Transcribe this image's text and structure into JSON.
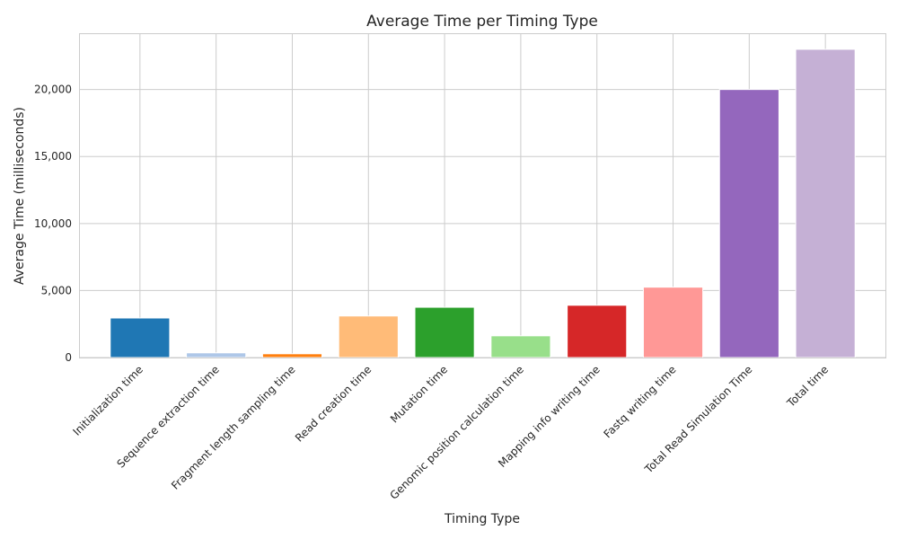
{
  "chart_data": {
    "type": "bar",
    "title": "Average Time per Timing Type",
    "xlabel": "Timing Type",
    "ylabel": "Average Time (milliseconds)",
    "ylim": [
      0,
      24200
    ],
    "yticks": [
      0,
      5000,
      10000,
      15000,
      20000
    ],
    "ytick_labels": [
      "0",
      "5,000",
      "10,000",
      "15,000",
      "20,000"
    ],
    "grid": true,
    "categories": [
      "Initialization time",
      "Sequence extraction time",
      "Fragment length sampling time",
      "Read creation time",
      "Mutation time",
      "Genomic position calculation time",
      "Mapping info writing time",
      "Fastq writing time",
      "Total Read Simulation Time",
      "Total time"
    ],
    "values": [
      2950,
      350,
      280,
      3100,
      3750,
      1620,
      3900,
      5250,
      20000,
      23000
    ],
    "colors": [
      "#1f77b4",
      "#aec7e8",
      "#ff7f0e",
      "#ffbb78",
      "#2ca02c",
      "#98df8a",
      "#d62728",
      "#ff9896",
      "#9467bd",
      "#c5b0d5"
    ]
  }
}
